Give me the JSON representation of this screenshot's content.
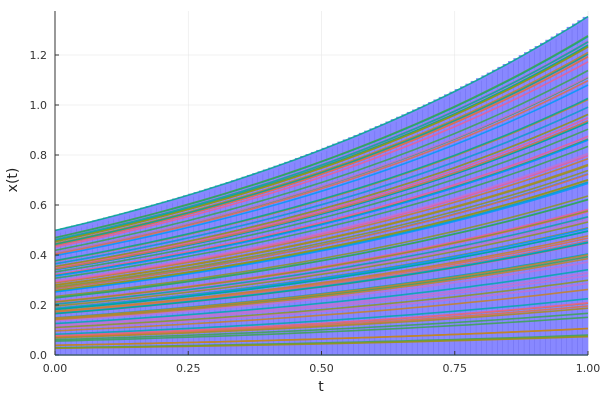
{
  "chart_data": {
    "type": "line",
    "title": "",
    "xlabel": "t",
    "ylabel": "x(t)",
    "xlim": [
      0.0,
      1.0
    ],
    "ylim": [
      0.0,
      1.38
    ],
    "x_ticks": [
      "0.00",
      "0.25",
      "0.50",
      "0.75",
      "1.00"
    ],
    "y_ticks": [
      "0.0",
      "0.2",
      "0.4",
      "0.6",
      "0.8",
      "1.0",
      "1.2"
    ],
    "grid": true,
    "legend": "none",
    "description": "Ensemble of exponential growth trajectories x(t) = x0*exp(t) for ~100 initial values x0 uniformly spread in [0, 0.5], drawn as many colored lines over a blue stepped bar/ribbon envelope of ~100 steps from 0 to the max trajectory.",
    "envelope": {
      "t": [
        0.0,
        0.25,
        0.5,
        0.75,
        1.0
      ],
      "upper": [
        0.5,
        0.64,
        0.82,
        1.06,
        1.37
      ],
      "lower": [
        0.0,
        0.0,
        0.0,
        0.0,
        0.0
      ],
      "color": "#7b7bff"
    },
    "series_count": 100,
    "x0_range": [
      0.0,
      0.5
    ],
    "growth_rate": 1.0,
    "n_steps": 100,
    "palette": [
      "#009af9",
      "#e26f46",
      "#3da44d",
      "#c271d2",
      "#ac8d18",
      "#00a9ad",
      "#ed5e93",
      "#c68225",
      "#00a98d",
      "#8e971e"
    ]
  },
  "axes": {
    "xlabel": "t",
    "ylabel": "x(t)"
  }
}
